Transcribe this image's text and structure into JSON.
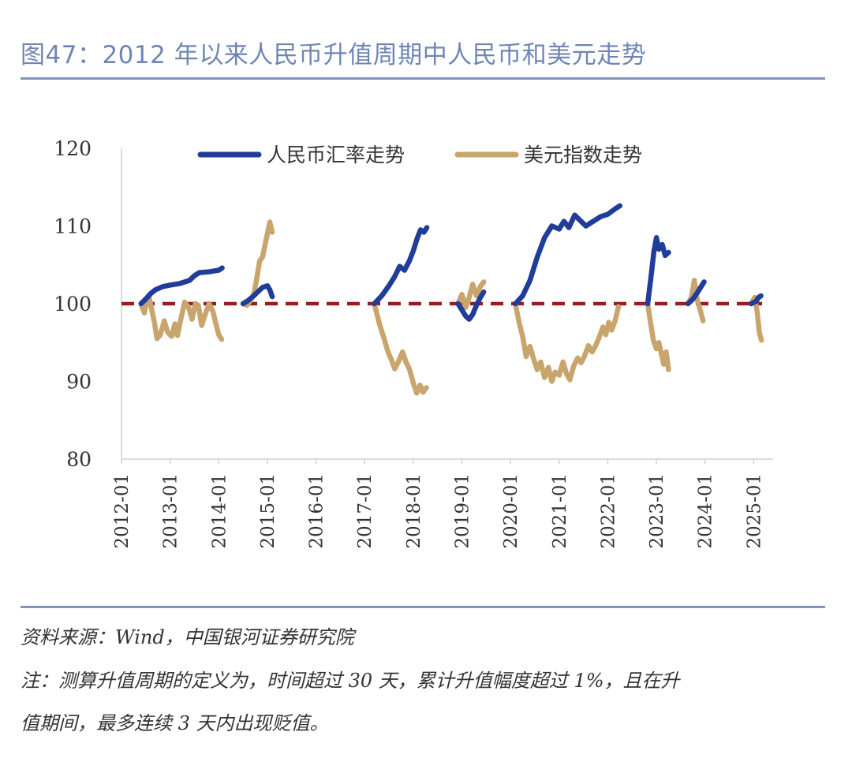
{
  "title": "图47：2012 年以来人民币升值周期中人民币和美元走势",
  "source": "资料来源：Wind，中国银河证券研究院",
  "note_line1": "注：测算升值周期的定义为，时间超过 30 天，累计升值幅度超过 1%，且在升",
  "note_line2": "值期间，最多连续 3 天内出现贬值。",
  "chart_data": {
    "type": "line",
    "title": "",
    "xlabel": "",
    "ylabel": "",
    "ylim": [
      80,
      120
    ],
    "yticks": [
      80,
      90,
      100,
      110,
      120
    ],
    "x_domain": [
      2012.0,
      2025.4
    ],
    "xticks": [
      {
        "label": "2012-01",
        "x": 2012.0
      },
      {
        "label": "2013-01",
        "x": 2013.0
      },
      {
        "label": "2014-01",
        "x": 2014.0
      },
      {
        "label": "2015-01",
        "x": 2015.0
      },
      {
        "label": "2016-01",
        "x": 2016.0
      },
      {
        "label": "2017-01",
        "x": 2017.0
      },
      {
        "label": "2018-01",
        "x": 2018.0
      },
      {
        "label": "2019-01",
        "x": 2019.0
      },
      {
        "label": "2020-01",
        "x": 2020.0
      },
      {
        "label": "2021-01",
        "x": 2021.0
      },
      {
        "label": "2022-01",
        "x": 2022.0
      },
      {
        "label": "2023-01",
        "x": 2023.0
      },
      {
        "label": "2024-01",
        "x": 2024.0
      },
      {
        "label": "2025-01",
        "x": 2025.0
      }
    ],
    "reference_line": {
      "y": 100,
      "color": "#9b1c1c",
      "style": "dashed"
    },
    "legend_position": "top-center",
    "series": [
      {
        "name": "人民币汇率走势",
        "color": "#1f3d99",
        "segments": [
          [
            [
              2012.4,
              100
            ],
            [
              2012.5,
              100.6
            ],
            [
              2012.6,
              101.3
            ],
            [
              2012.7,
              101.8
            ],
            [
              2012.85,
              102.2
            ],
            [
              2013.0,
              102.4
            ],
            [
              2013.2,
              102.6
            ],
            [
              2013.4,
              103.0
            ],
            [
              2013.5,
              103.6
            ],
            [
              2013.6,
              104.0
            ],
            [
              2013.8,
              104.1
            ],
            [
              2014.0,
              104.3
            ],
            [
              2014.07,
              104.6
            ]
          ],
          [
            [
              2014.5,
              100
            ],
            [
              2014.6,
              100.4
            ],
            [
              2014.7,
              100.9
            ],
            [
              2014.8,
              101.5
            ],
            [
              2014.9,
              102.1
            ],
            [
              2015.0,
              102.3
            ],
            [
              2015.05,
              101.8
            ],
            [
              2015.1,
              100.9
            ]
          ],
          [
            [
              2017.2,
              100
            ],
            [
              2017.35,
              101.0
            ],
            [
              2017.5,
              102.3
            ],
            [
              2017.62,
              103.5
            ],
            [
              2017.72,
              104.8
            ],
            [
              2017.82,
              104.3
            ],
            [
              2017.92,
              105.5
            ],
            [
              2018.0,
              106.8
            ],
            [
              2018.08,
              108.4
            ],
            [
              2018.15,
              109.5
            ],
            [
              2018.22,
              109.2
            ],
            [
              2018.28,
              109.8
            ]
          ],
          [
            [
              2018.92,
              100
            ],
            [
              2019.0,
              99.2
            ],
            [
              2019.08,
              98.4
            ],
            [
              2019.15,
              98.0
            ],
            [
              2019.22,
              98.6
            ],
            [
              2019.3,
              99.8
            ],
            [
              2019.38,
              100.8
            ],
            [
              2019.45,
              101.5
            ]
          ],
          [
            [
              2020.1,
              100
            ],
            [
              2020.25,
              101.0
            ],
            [
              2020.4,
              103.0
            ],
            [
              2020.55,
              106.0
            ],
            [
              2020.7,
              108.5
            ],
            [
              2020.85,
              110.0
            ],
            [
              2021.0,
              109.6
            ],
            [
              2021.1,
              110.6
            ],
            [
              2021.2,
              109.8
            ],
            [
              2021.32,
              111.4
            ],
            [
              2021.45,
              110.6
            ],
            [
              2021.55,
              110.0
            ],
            [
              2021.7,
              110.6
            ],
            [
              2021.85,
              111.2
            ],
            [
              2022.0,
              111.5
            ],
            [
              2022.15,
              112.2
            ],
            [
              2022.25,
              112.6
            ]
          ],
          [
            [
              2022.82,
              100
            ],
            [
              2022.88,
              103.0
            ],
            [
              2022.95,
              106.8
            ],
            [
              2023.0,
              108.5
            ],
            [
              2023.05,
              107.0
            ],
            [
              2023.12,
              107.6
            ],
            [
              2023.18,
              106.2
            ],
            [
              2023.25,
              106.6
            ]
          ],
          [
            [
              2023.65,
              100
            ],
            [
              2023.75,
              100.6
            ],
            [
              2023.85,
              101.5
            ],
            [
              2023.92,
              102.2
            ],
            [
              2023.98,
              102.8
            ]
          ],
          [
            [
              2024.95,
              100
            ],
            [
              2025.05,
              100.3
            ],
            [
              2025.1,
              100.8
            ],
            [
              2025.15,
              101.0
            ]
          ]
        ]
      },
      {
        "name": "美元指数走势",
        "color": "#c9a56e",
        "segments": [
          [
            [
              2012.4,
              100
            ],
            [
              2012.47,
              98.8
            ],
            [
              2012.52,
              100.5
            ],
            [
              2012.57,
              100.8
            ],
            [
              2012.63,
              99.0
            ],
            [
              2012.68,
              97.5
            ],
            [
              2012.73,
              95.5
            ],
            [
              2012.8,
              96.0
            ],
            [
              2012.88,
              97.8
            ],
            [
              2012.95,
              96.3
            ],
            [
              2013.03,
              95.8
            ],
            [
              2013.1,
              97.4
            ],
            [
              2013.15,
              95.9
            ],
            [
              2013.22,
              98.0
            ],
            [
              2013.3,
              100.2
            ],
            [
              2013.38,
              99.5
            ],
            [
              2013.45,
              98.0
            ],
            [
              2013.52,
              100.0
            ],
            [
              2013.58,
              99.8
            ],
            [
              2013.65,
              97.2
            ],
            [
              2013.72,
              98.6
            ],
            [
              2013.8,
              100.0
            ],
            [
              2013.88,
              99.0
            ],
            [
              2013.95,
              97.2
            ],
            [
              2014.0,
              96.0
            ],
            [
              2014.06,
              95.4
            ]
          ],
          [
            [
              2014.5,
              100
            ],
            [
              2014.58,
              99.8
            ],
            [
              2014.65,
              100.4
            ],
            [
              2014.72,
              101.2
            ],
            [
              2014.78,
              103.2
            ],
            [
              2014.84,
              105.5
            ],
            [
              2014.9,
              106.0
            ],
            [
              2014.95,
              107.5
            ],
            [
              2015.0,
              109.0
            ],
            [
              2015.05,
              110.5
            ],
            [
              2015.1,
              109.2
            ]
          ],
          [
            [
              2017.2,
              100
            ],
            [
              2017.3,
              97.5
            ],
            [
              2017.4,
              95.5
            ],
            [
              2017.48,
              93.8
            ],
            [
              2017.55,
              92.8
            ],
            [
              2017.62,
              91.6
            ],
            [
              2017.7,
              92.6
            ],
            [
              2017.78,
              93.8
            ],
            [
              2017.85,
              92.5
            ],
            [
              2017.92,
              91.6
            ],
            [
              2018.0,
              89.8
            ],
            [
              2018.07,
              88.5
            ],
            [
              2018.14,
              89.5
            ],
            [
              2018.2,
              88.6
            ],
            [
              2018.27,
              89.2
            ]
          ],
          [
            [
              2018.92,
              100
            ],
            [
              2019.0,
              101.2
            ],
            [
              2019.08,
              99.5
            ],
            [
              2019.15,
              100.8
            ],
            [
              2019.22,
              102.5
            ],
            [
              2019.3,
              101.0
            ],
            [
              2019.38,
              102.2
            ],
            [
              2019.45,
              102.8
            ]
          ],
          [
            [
              2020.1,
              100
            ],
            [
              2020.18,
              97.5
            ],
            [
              2020.25,
              95.8
            ],
            [
              2020.32,
              93.2
            ],
            [
              2020.4,
              94.5
            ],
            [
              2020.48,
              92.8
            ],
            [
              2020.55,
              91.5
            ],
            [
              2020.62,
              92.5
            ],
            [
              2020.7,
              90.5
            ],
            [
              2020.78,
              91.8
            ],
            [
              2020.85,
              90.0
            ],
            [
              2020.92,
              91.2
            ],
            [
              2021.0,
              90.8
            ],
            [
              2021.08,
              92.5
            ],
            [
              2021.15,
              91.0
            ],
            [
              2021.22,
              90.2
            ],
            [
              2021.3,
              92.0
            ],
            [
              2021.38,
              93.0
            ],
            [
              2021.45,
              92.4
            ],
            [
              2021.52,
              93.2
            ],
            [
              2021.6,
              94.6
            ],
            [
              2021.68,
              93.8
            ],
            [
              2021.75,
              94.6
            ],
            [
              2021.82,
              95.6
            ],
            [
              2021.9,
              97.0
            ],
            [
              2021.96,
              96.0
            ],
            [
              2022.02,
              97.6
            ],
            [
              2022.08,
              96.6
            ],
            [
              2022.15,
              97.8
            ],
            [
              2022.22,
              99.6
            ]
          ],
          [
            [
              2022.82,
              100
            ],
            [
              2022.88,
              97.5
            ],
            [
              2022.94,
              95.2
            ],
            [
              2023.0,
              94.2
            ],
            [
              2023.05,
              95.0
            ],
            [
              2023.1,
              93.6
            ],
            [
              2023.15,
              92.2
            ],
            [
              2023.2,
              93.8
            ],
            [
              2023.25,
              91.5
            ]
          ],
          [
            [
              2023.65,
              100
            ],
            [
              2023.72,
              100.8
            ],
            [
              2023.78,
              103.0
            ],
            [
              2023.84,
              100.5
            ],
            [
              2023.9,
              99.2
            ],
            [
              2023.96,
              97.8
            ]
          ],
          [
            [
              2024.95,
              100
            ],
            [
              2025.02,
              100.8
            ],
            [
              2025.07,
              99.0
            ],
            [
              2025.12,
              96.2
            ],
            [
              2025.16,
              95.3
            ]
          ]
        ]
      }
    ]
  }
}
